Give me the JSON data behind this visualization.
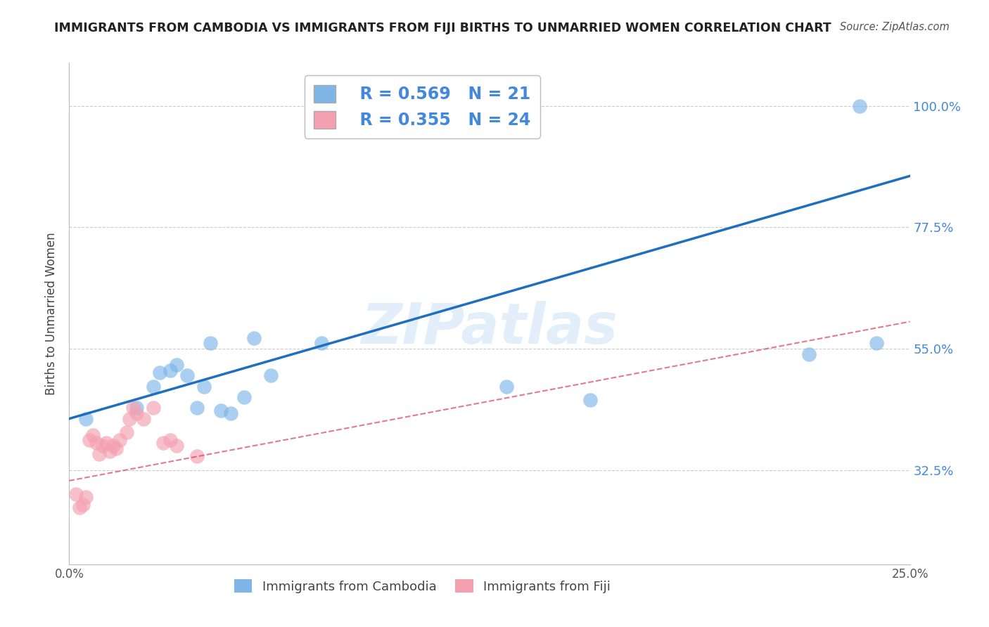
{
  "title": "IMMIGRANTS FROM CAMBODIA VS IMMIGRANTS FROM FIJI BIRTHS TO UNMARRIED WOMEN CORRELATION CHART",
  "source": "Source: ZipAtlas.com",
  "ylabel": "Births to Unmarried Women",
  "xlim": [
    0.0,
    0.25
  ],
  "ylim": [
    0.15,
    1.08
  ],
  "xtick_positions": [
    0.0,
    0.05,
    0.1,
    0.15,
    0.2,
    0.25
  ],
  "xtick_labels": [
    "0.0%",
    "",
    "",
    "",
    "",
    "25.0%"
  ],
  "ytick_positions": [
    0.325,
    0.55,
    0.775,
    1.0
  ],
  "ytick_labels": [
    "32.5%",
    "55.0%",
    "77.5%",
    "100.0%"
  ],
  "cambodia_R": 0.569,
  "cambodia_N": 21,
  "fiji_R": 0.355,
  "fiji_N": 24,
  "cambodia_color": "#7EB6E8",
  "fiji_color": "#F4A0B0",
  "cambodia_line_color": "#1E6FBF",
  "fiji_line_color": "#D94060",
  "grid_color": "#CCCCCC",
  "cambodia_x": [
    0.005,
    0.02,
    0.025,
    0.027,
    0.03,
    0.032,
    0.035,
    0.038,
    0.04,
    0.042,
    0.045,
    0.048,
    0.052,
    0.055,
    0.06,
    0.075,
    0.13,
    0.155,
    0.22,
    0.235,
    0.24
  ],
  "cambodia_y": [
    0.42,
    0.44,
    0.48,
    0.505,
    0.51,
    0.52,
    0.5,
    0.44,
    0.48,
    0.56,
    0.435,
    0.43,
    0.46,
    0.57,
    0.5,
    0.56,
    0.48,
    0.455,
    0.54,
    1.0,
    0.56
  ],
  "fiji_x": [
    0.002,
    0.003,
    0.004,
    0.005,
    0.006,
    0.007,
    0.008,
    0.009,
    0.01,
    0.011,
    0.012,
    0.013,
    0.014,
    0.015,
    0.017,
    0.018,
    0.019,
    0.02,
    0.022,
    0.025,
    0.028,
    0.03,
    0.032,
    0.038
  ],
  "fiji_y": [
    0.28,
    0.255,
    0.26,
    0.275,
    0.38,
    0.39,
    0.375,
    0.355,
    0.37,
    0.375,
    0.36,
    0.37,
    0.365,
    0.38,
    0.395,
    0.42,
    0.44,
    0.43,
    0.42,
    0.44,
    0.375,
    0.38,
    0.37,
    0.35
  ]
}
